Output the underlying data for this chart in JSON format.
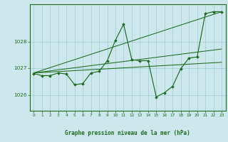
{
  "title": "Graphe pression niveau de la mer (hPa)",
  "bg_color": "#cce8ec",
  "grid_color": "#9ecdd4",
  "line_color": "#1e6b1e",
  "xlim": [
    -0.5,
    23.5
  ],
  "ylim": [
    1025.4,
    1029.4
  ],
  "yticks": [
    1026,
    1027,
    1028
  ],
  "xticks": [
    0,
    1,
    2,
    3,
    4,
    5,
    6,
    7,
    8,
    9,
    10,
    11,
    12,
    13,
    14,
    15,
    16,
    17,
    18,
    19,
    20,
    21,
    22,
    23
  ],
  "series_main": {
    "x": [
      0,
      1,
      2,
      3,
      4,
      5,
      6,
      7,
      8,
      9,
      10,
      11,
      12,
      13,
      14,
      15,
      16,
      17,
      18,
      19,
      20,
      21,
      22,
      23
    ],
    "y": [
      1026.8,
      1026.72,
      1026.72,
      1026.82,
      1026.78,
      1026.38,
      1026.42,
      1026.82,
      1026.88,
      1027.28,
      1028.05,
      1028.65,
      1027.32,
      1027.28,
      1027.28,
      1025.92,
      1026.08,
      1026.32,
      1026.98,
      1027.38,
      1027.42,
      1029.05,
      1029.12,
      1029.12
    ]
  },
  "trend1": {
    "x": [
      0,
      23
    ],
    "y": [
      1026.82,
      1029.12
    ]
  },
  "trend2": {
    "x": [
      0,
      23
    ],
    "y": [
      1026.82,
      1027.22
    ]
  },
  "trend3": {
    "x": [
      0,
      23
    ],
    "y": [
      1026.82,
      1027.72
    ]
  }
}
